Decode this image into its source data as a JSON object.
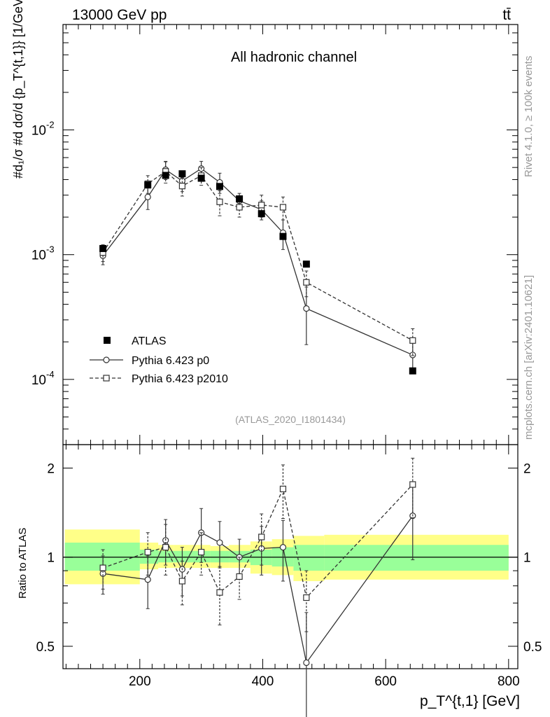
{
  "header": {
    "energy": "13000 GeV pp",
    "process": "tt̄"
  },
  "side_text": {
    "rivet": "Rivet 4.1.0, ≥ 100k events",
    "mcplots": "mcplots.cern.ch [arXiv:2401.10621]"
  },
  "chart_data": [
    {
      "type": "line",
      "role": "main",
      "title": "All hadronic channel",
      "analysis_id": "(ATLAS_2020_I1801434)",
      "ylabel": "#d₁/σ #d dσ/d {p_T^{t,1}} [1/GeV]",
      "yscale": "log",
      "ylim": [
        3e-05,
        0.07
      ],
      "xlim": [
        75,
        815
      ],
      "yticks": [
        "10^-2",
        "10^-3",
        "10^-4"
      ],
      "legend_position": "bottom-left",
      "series": [
        {
          "name": "ATLAS",
          "style": "square-filled",
          "x": [
            140,
            213,
            242,
            269,
            300,
            330,
            362,
            398,
            433,
            471,
            644
          ],
          "y": [
            0.00112,
            0.00362,
            0.00432,
            0.00445,
            0.0041,
            0.00352,
            0.0028,
            0.00213,
            0.0014,
            0.00084,
            0.000117
          ]
        },
        {
          "name": "Pythia 6.423 p0",
          "style": "circle-open-solid",
          "x": [
            140,
            213,
            242,
            269,
            300,
            330,
            362,
            398,
            433,
            471,
            644
          ],
          "y": [
            0.00098,
            0.0029,
            0.0048,
            0.0039,
            0.0049,
            0.0038,
            0.0027,
            0.0023,
            0.0015,
            0.00037,
            0.000157
          ],
          "err": [
            0.00015,
            0.0006,
            0.0008,
            0.0007,
            0.0007,
            0.0007,
            0.0004,
            0.0004,
            0.0004,
            0.00018,
            4e-05
          ]
        },
        {
          "name": "Pythia 6.423 p2010",
          "style": "square-open-dashed",
          "x": [
            140,
            213,
            242,
            269,
            300,
            330,
            362,
            398,
            433,
            471,
            644
          ],
          "y": [
            0.00104,
            0.0037,
            0.00465,
            0.00355,
            0.0043,
            0.00265,
            0.0024,
            0.0025,
            0.0024,
            0.0006,
            0.000205
          ],
          "err": [
            0.00016,
            0.0006,
            0.0009,
            0.0006,
            0.0007,
            0.0006,
            0.0004,
            0.0005,
            0.0005,
            0.00014,
            5e-05
          ]
        }
      ]
    },
    {
      "type": "line",
      "role": "ratio",
      "ylabel": "Ratio to ATLAS",
      "xlabel": "p_T^{t,1} [GeV]",
      "yscale": "log",
      "ylim": [
        0.42,
        2.4
      ],
      "xlim": [
        75,
        815
      ],
      "xticks": [
        "200",
        "400",
        "600",
        "800"
      ],
      "yticks": [
        "2",
        "1",
        "0.5"
      ],
      "bands": [
        {
          "xlo": 75,
          "xhi": 200,
          "inner": [
            0.9,
            1.12
          ],
          "outer": [
            0.81,
            1.24
          ]
        },
        {
          "xlo": 200,
          "xhi": 230,
          "inner": [
            0.95,
            1.06
          ],
          "outer": [
            0.91,
            1.12
          ]
        },
        {
          "xlo": 230,
          "xhi": 255,
          "inner": [
            0.96,
            1.05
          ],
          "outer": [
            0.92,
            1.1
          ]
        },
        {
          "xlo": 255,
          "xhi": 285,
          "inner": [
            0.96,
            1.05
          ],
          "outer": [
            0.92,
            1.1
          ]
        },
        {
          "xlo": 285,
          "xhi": 315,
          "inner": [
            0.96,
            1.05
          ],
          "outer": [
            0.92,
            1.1
          ]
        },
        {
          "xlo": 315,
          "xhi": 345,
          "inner": [
            0.96,
            1.05
          ],
          "outer": [
            0.92,
            1.09
          ]
        },
        {
          "xlo": 345,
          "xhi": 380,
          "inner": [
            0.96,
            1.05
          ],
          "outer": [
            0.92,
            1.1
          ]
        },
        {
          "xlo": 380,
          "xhi": 415,
          "inner": [
            0.94,
            1.06
          ],
          "outer": [
            0.88,
            1.13
          ]
        },
        {
          "xlo": 415,
          "xhi": 450,
          "inner": [
            0.93,
            1.08
          ],
          "outer": [
            0.87,
            1.15
          ]
        },
        {
          "xlo": 450,
          "xhi": 500,
          "inner": [
            0.9,
            1.1
          ],
          "outer": [
            0.83,
            1.18
          ]
        },
        {
          "xlo": 500,
          "xhi": 800,
          "inner": [
            0.9,
            1.1
          ],
          "outer": [
            0.84,
            1.19
          ]
        }
      ],
      "series": [
        {
          "name": "Pythia 6.423 p0",
          "style": "circle-open-solid",
          "x": [
            140,
            213,
            242,
            269,
            300,
            330,
            362,
            398,
            433,
            471,
            644
          ],
          "y": [
            0.88,
            0.84,
            1.14,
            0.91,
            1.21,
            1.12,
            1.0,
            1.07,
            1.08,
            0.44,
            1.38
          ],
          "err": [
            0.13,
            0.17,
            0.2,
            0.17,
            0.25,
            0.2,
            0.15,
            0.2,
            0.25,
            0.21,
            0.4
          ]
        },
        {
          "name": "Pythia 6.423 p2010",
          "style": "square-open-dashed",
          "x": [
            140,
            213,
            242,
            269,
            300,
            330,
            362,
            398,
            433,
            471,
            644
          ],
          "y": [
            0.92,
            1.04,
            1.08,
            0.83,
            1.04,
            0.76,
            0.86,
            1.17,
            1.7,
            0.73,
            1.76
          ],
          "err": [
            0.14,
            0.17,
            0.21,
            0.14,
            0.17,
            0.17,
            0.14,
            0.23,
            0.35,
            0.17,
            0.4
          ]
        }
      ]
    }
  ]
}
